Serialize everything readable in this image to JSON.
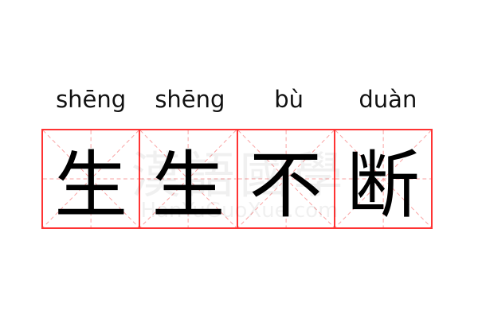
{
  "idiom": {
    "pinyin": [
      "shēng",
      "shēng",
      "bù",
      "duàn"
    ],
    "characters": [
      "生",
      "生",
      "不",
      "断"
    ]
  },
  "watermark": {
    "text": "漢語國學",
    "url": "HanYuGuoXue.com"
  },
  "colors": {
    "grid_border": "#ff3333",
    "guide_lines": "#f9a0a0",
    "text": "#000000"
  }
}
